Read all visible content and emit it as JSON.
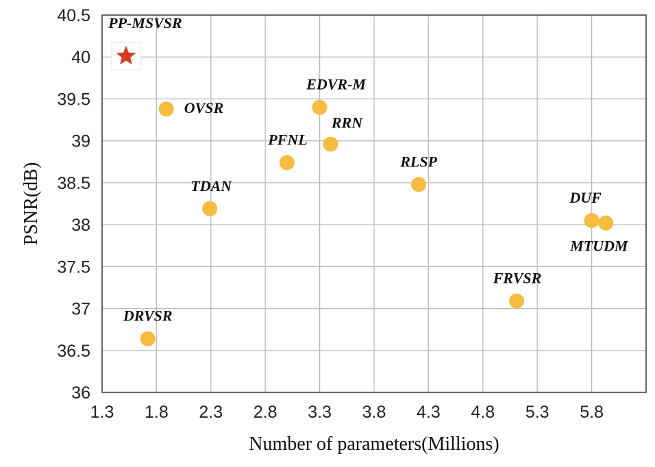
{
  "chart_data": {
    "type": "scatter",
    "title": "",
    "xlabel": "Number of parameters(Millions)",
    "ylabel": "PSNR(dB)",
    "xlim": [
      1.3,
      6.3
    ],
    "ylim": [
      36,
      40.5
    ],
    "x_ticks": [
      "1.3",
      "1.8",
      "2.3",
      "2.8",
      "3.3",
      "3.8",
      "4.3",
      "4.8",
      "5.3",
      "5.8"
    ],
    "y_ticks": [
      "36",
      "36.5",
      "37",
      "37.5",
      "38",
      "38.5",
      "39",
      "39.5",
      "40",
      "40.5"
    ],
    "grid": true,
    "marker_color": "#f5bc3f",
    "highlight_color": "#d63a22",
    "points": [
      {
        "label": "PP-MSVSR",
        "x": 1.52,
        "y": 40.01,
        "marker": "star",
        "label_pos": "above"
      },
      {
        "label": "OVSR",
        "x": 1.89,
        "y": 39.38,
        "marker": "circle",
        "label_pos": "right"
      },
      {
        "label": "EDVR-M",
        "x": 3.3,
        "y": 39.4,
        "marker": "circle",
        "label_pos": "above"
      },
      {
        "label": "RRN",
        "x": 3.4,
        "y": 38.96,
        "marker": "circle",
        "label_pos": "above"
      },
      {
        "label": "PFNL",
        "x": 3.0,
        "y": 38.74,
        "marker": "circle",
        "label_pos": "above"
      },
      {
        "label": "RLSP",
        "x": 4.21,
        "y": 38.48,
        "marker": "circle",
        "label_pos": "above"
      },
      {
        "label": "TDAN",
        "x": 2.29,
        "y": 38.19,
        "marker": "circle",
        "label_pos": "above"
      },
      {
        "label": "DUF",
        "x": 5.8,
        "y": 38.05,
        "marker": "circle",
        "label_pos": "above"
      },
      {
        "label": "MTUDM",
        "x": 5.93,
        "y": 38.02,
        "marker": "circle",
        "label_pos": "below"
      },
      {
        "label": "FRVSR",
        "x": 5.11,
        "y": 37.09,
        "marker": "circle",
        "label_pos": "above"
      },
      {
        "label": "DRVSR",
        "x": 1.72,
        "y": 36.64,
        "marker": "circle",
        "label_pos": "above"
      }
    ]
  }
}
